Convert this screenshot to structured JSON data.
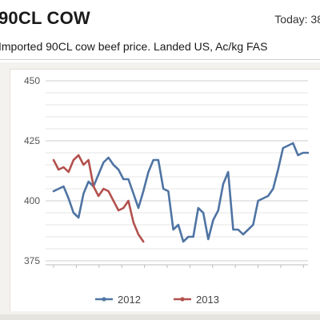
{
  "header": {
    "title": "90CL COW",
    "today_text": "Today: 38"
  },
  "subtitle": "Imported 90CL cow beef price. Landed US, Ac/kg FAS",
  "colors": {
    "series_2012": "#4f74a3",
    "series_2013": "#b3514d",
    "grid": "#d9d9d9",
    "axis_text": "#555555",
    "panel_bg": "#f4f2ee"
  },
  "chart_data": {
    "type": "line",
    "ylim": [
      375,
      450
    ],
    "yticks": [
      375,
      400,
      425,
      450
    ],
    "ytick_labels": [
      "375",
      "400",
      "425",
      "450"
    ],
    "grid": true,
    "legend_position": "bottom",
    "x_count": 52,
    "series": [
      {
        "name": "2012",
        "color": "#4f74a3",
        "values": [
          404,
          405,
          406,
          401,
          395,
          393,
          403,
          408,
          406,
          411,
          416,
          418,
          415,
          413,
          409,
          409,
          403,
          397,
          404,
          412,
          417,
          417,
          405,
          404,
          388,
          390,
          383,
          385,
          385,
          397,
          395,
          384,
          392,
          396,
          407,
          412,
          388,
          388,
          386,
          388,
          390,
          400,
          401,
          402,
          405,
          413,
          422,
          423,
          424,
          419,
          420,
          420
        ]
      },
      {
        "name": "2013",
        "color": "#b3514d",
        "values": [
          417,
          413,
          414,
          412,
          417,
          419,
          415,
          417,
          406,
          402,
          405,
          404,
          400,
          396,
          397,
          400,
          391,
          386,
          383
        ]
      }
    ]
  }
}
